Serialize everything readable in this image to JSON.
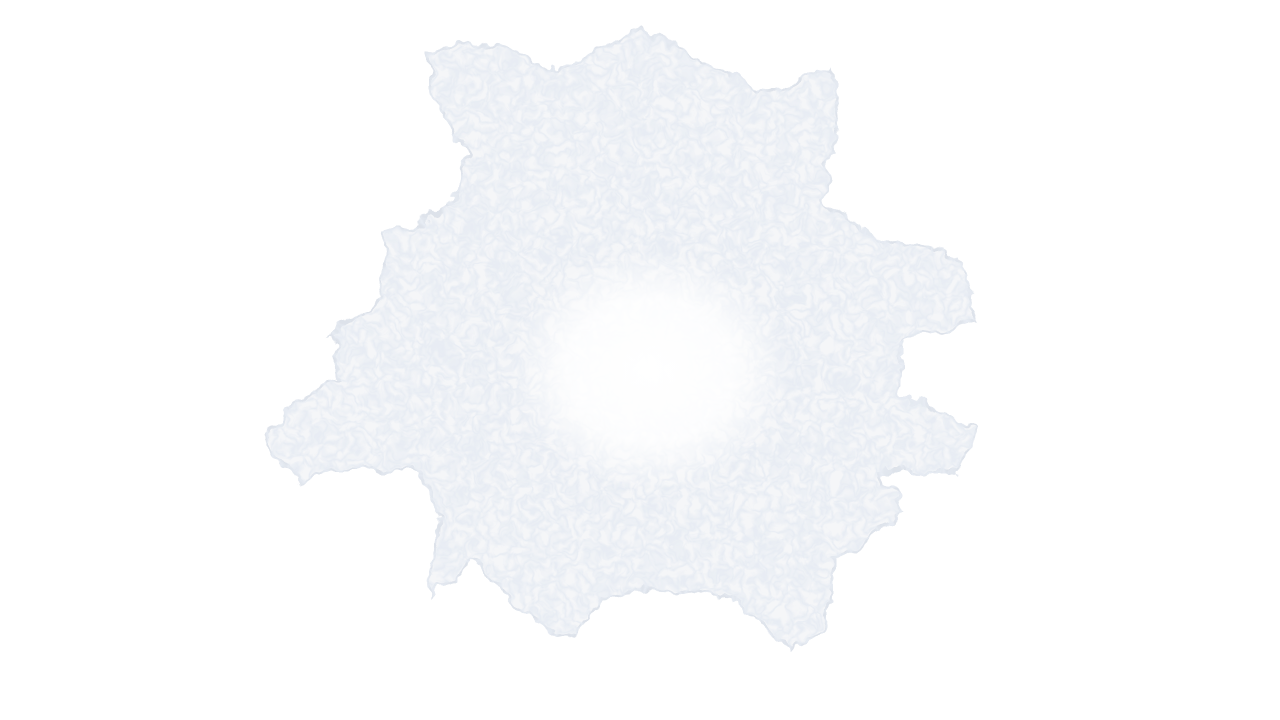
{
  "scene": {
    "background_color": "#ffffff",
    "subject": "pale-jagged-blob-icon",
    "palette": {
      "fill": "#f7f7f8",
      "shadow": "#d9dde6",
      "tint": "#c9d3e3",
      "core": "#ffffff"
    }
  }
}
